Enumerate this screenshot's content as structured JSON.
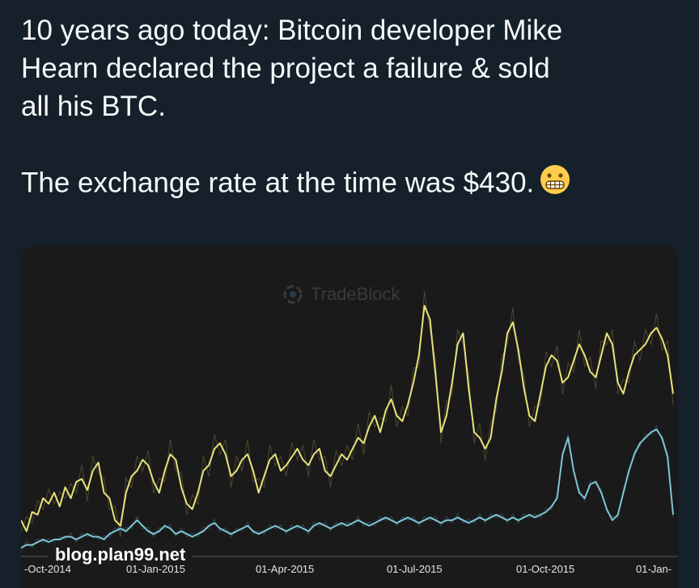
{
  "tweet": {
    "line1": "10 years ago today: Bitcoin developer Mike",
    "line2": "Hearn declared the project a failure & sold",
    "line3": "all his BTC.",
    "line4": "The exchange rate at the time was $430.",
    "emoji_icon": "grimacing-face-icon"
  },
  "chart": {
    "watermark": "TradeBlock",
    "site_tag": "blog.plan99.net",
    "series_colors": {
      "upper": "#e8e27a",
      "lower": "#7fc4d6"
    },
    "x_ticks": [
      "-Oct-2014",
      "01-Jan-2015",
      "01-Apr-2015",
      "01-Jul-2015",
      "01-Oct-2015",
      "01-Jan-"
    ]
  },
  "chart_data": {
    "type": "line",
    "title": "",
    "xlabel": "",
    "ylabel": "",
    "x_ticks": [
      "-Oct-2014",
      "01-Jan-2015",
      "01-Apr-2015",
      "01-Jul-2015",
      "01-Oct-2015",
      "01-Jan-"
    ],
    "grid": false,
    "series": [
      {
        "color": "#e8e27a",
        "values": [
          0.12,
          0.08,
          0.15,
          0.14,
          0.2,
          0.18,
          0.22,
          0.17,
          0.24,
          0.2,
          0.26,
          0.27,
          0.23,
          0.3,
          0.33,
          0.22,
          0.2,
          0.12,
          0.1,
          0.22,
          0.28,
          0.3,
          0.34,
          0.32,
          0.26,
          0.22,
          0.3,
          0.36,
          0.34,
          0.24,
          0.18,
          0.16,
          0.22,
          0.3,
          0.32,
          0.38,
          0.4,
          0.36,
          0.28,
          0.3,
          0.34,
          0.36,
          0.3,
          0.22,
          0.28,
          0.34,
          0.36,
          0.3,
          0.32,
          0.35,
          0.38,
          0.34,
          0.32,
          0.36,
          0.38,
          0.3,
          0.28,
          0.32,
          0.36,
          0.34,
          0.38,
          0.42,
          0.4,
          0.46,
          0.5,
          0.44,
          0.52,
          0.56,
          0.5,
          0.48,
          0.54,
          0.62,
          0.72,
          0.9,
          0.85,
          0.65,
          0.44,
          0.5,
          0.62,
          0.76,
          0.8,
          0.6,
          0.44,
          0.42,
          0.38,
          0.42,
          0.56,
          0.66,
          0.8,
          0.84,
          0.74,
          0.6,
          0.5,
          0.48,
          0.58,
          0.68,
          0.72,
          0.7,
          0.62,
          0.64,
          0.7,
          0.76,
          0.72,
          0.66,
          0.64,
          0.72,
          0.8,
          0.76,
          0.62,
          0.58,
          0.66,
          0.72,
          0.74,
          0.76,
          0.8,
          0.82,
          0.78,
          0.72,
          0.58
        ]
      },
      {
        "color": "#7fc4d6",
        "values": [
          0.02,
          0.03,
          0.03,
          0.04,
          0.05,
          0.04,
          0.05,
          0.05,
          0.06,
          0.06,
          0.05,
          0.06,
          0.07,
          0.06,
          0.06,
          0.05,
          0.07,
          0.08,
          0.09,
          0.08,
          0.1,
          0.12,
          0.1,
          0.08,
          0.07,
          0.08,
          0.1,
          0.09,
          0.07,
          0.08,
          0.07,
          0.06,
          0.07,
          0.08,
          0.1,
          0.11,
          0.09,
          0.08,
          0.07,
          0.08,
          0.09,
          0.1,
          0.08,
          0.07,
          0.08,
          0.09,
          0.1,
          0.09,
          0.08,
          0.09,
          0.1,
          0.09,
          0.08,
          0.1,
          0.11,
          0.1,
          0.09,
          0.1,
          0.11,
          0.1,
          0.11,
          0.12,
          0.11,
          0.1,
          0.11,
          0.12,
          0.13,
          0.12,
          0.11,
          0.12,
          0.13,
          0.12,
          0.11,
          0.12,
          0.13,
          0.12,
          0.11,
          0.12,
          0.12,
          0.13,
          0.12,
          0.11,
          0.12,
          0.13,
          0.12,
          0.13,
          0.14,
          0.13,
          0.12,
          0.13,
          0.12,
          0.13,
          0.14,
          0.13,
          0.14,
          0.15,
          0.17,
          0.2,
          0.36,
          0.42,
          0.3,
          0.22,
          0.2,
          0.25,
          0.26,
          0.22,
          0.16,
          0.12,
          0.14,
          0.22,
          0.3,
          0.36,
          0.4,
          0.42,
          0.44,
          0.45,
          0.42,
          0.35,
          0.14
        ]
      }
    ]
  }
}
